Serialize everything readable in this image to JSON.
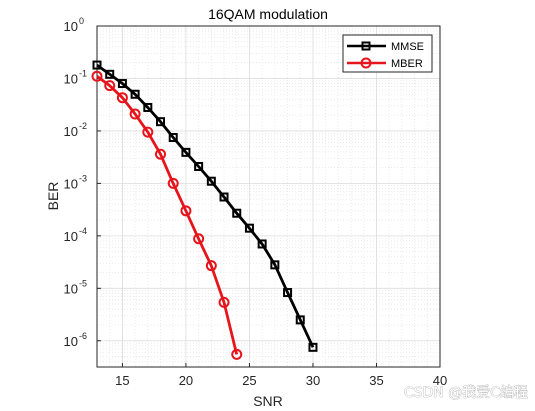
{
  "chart_data": {
    "type": "line",
    "title": "16QAM modulation",
    "xlabel": "SNR",
    "ylabel": "BER",
    "xlim": [
      13,
      40
    ],
    "ylim_log10": [
      -6.5,
      0
    ],
    "y_scale": "log",
    "x_ticks": [
      15,
      20,
      25,
      30,
      35,
      40
    ],
    "y_tick_exponents": [
      0,
      -1,
      -2,
      -3,
      -4,
      -5,
      -6
    ],
    "y_tick_base": "10",
    "grid": "on (major and minor)",
    "legend_position": "top-right",
    "series": [
      {
        "name": "MMSE",
        "color": "#000000",
        "marker": "square",
        "x": [
          13,
          14,
          15,
          16,
          17,
          18,
          19,
          20,
          21,
          22,
          23,
          24,
          25,
          26,
          27,
          28,
          29,
          30
        ],
        "y": [
          0.18,
          0.12,
          0.08,
          0.05,
          0.028,
          0.015,
          0.0075,
          0.0039,
          0.0021,
          0.0011,
          0.00055,
          0.00027,
          0.00014,
          7e-05,
          2.8e-05,
          8.3e-06,
          2.5e-06,
          7.5e-07
        ]
      },
      {
        "name": "MBER",
        "color": "#e8141b",
        "marker": "circle",
        "x": [
          13,
          14,
          15,
          16,
          17,
          18,
          19,
          20,
          21,
          22,
          23,
          24
        ],
        "y": [
          0.11,
          0.073,
          0.043,
          0.021,
          0.0095,
          0.0036,
          0.001,
          0.0003,
          8.8e-05,
          2.7e-05,
          5.4e-06,
          5.5e-07
        ]
      }
    ]
  },
  "watermark": "CSDN @我爱C编程"
}
